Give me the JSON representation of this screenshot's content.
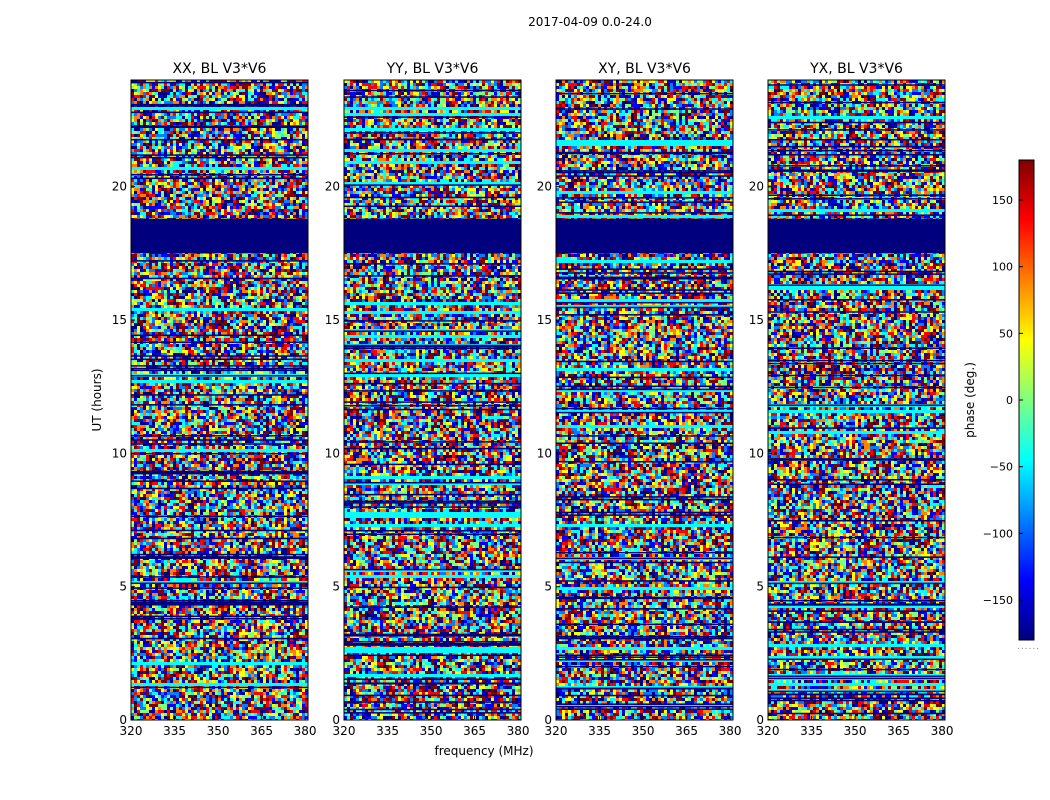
{
  "chart_data": {
    "type": "heatmap",
    "title": "2017-04-09 0.0-24.0",
    "xlabel": "frequency (MHz)",
    "ylabel": "UT (hours)",
    "xlim": [
      320,
      381
    ],
    "ylim": [
      0,
      24
    ],
    "x_ticks": [
      320,
      335,
      350,
      365,
      380
    ],
    "y_ticks": [
      0,
      5,
      10,
      15,
      20
    ],
    "x_tick_labels": [
      "320",
      "335",
      "350",
      "365",
      "380"
    ],
    "y_tick_labels": [
      "0",
      "5",
      "10",
      "15",
      "20"
    ],
    "panels": [
      {
        "name": "XX, BL V3*V6",
        "pol": "XX"
      },
      {
        "name": "YY, BL V3*V6",
        "pol": "YY"
      },
      {
        "name": "XY, BL V3*V6",
        "pol": "XY"
      },
      {
        "name": "YX, BL V3*V6",
        "pol": "YX"
      }
    ],
    "flagged_ut_ranges": [
      [
        17.5,
        18.8
      ]
    ],
    "colorbar": {
      "label": "phase (deg.)",
      "range": [
        -180,
        180
      ],
      "ticks": [
        150,
        100,
        50,
        0,
        -50,
        -100,
        -150
      ],
      "tick_labels": [
        "150",
        "100",
        "50",
        "0",
        "−50",
        "−100",
        "−150"
      ],
      "colormap": "jet"
    },
    "colormap_colors": [
      "#00007f",
      "#0000ff",
      "#007fff",
      "#00ffff",
      "#7fff7f",
      "#ffff00",
      "#ff7f00",
      "#ff0000",
      "#7f0000"
    ]
  },
  "footer_dots": "......"
}
